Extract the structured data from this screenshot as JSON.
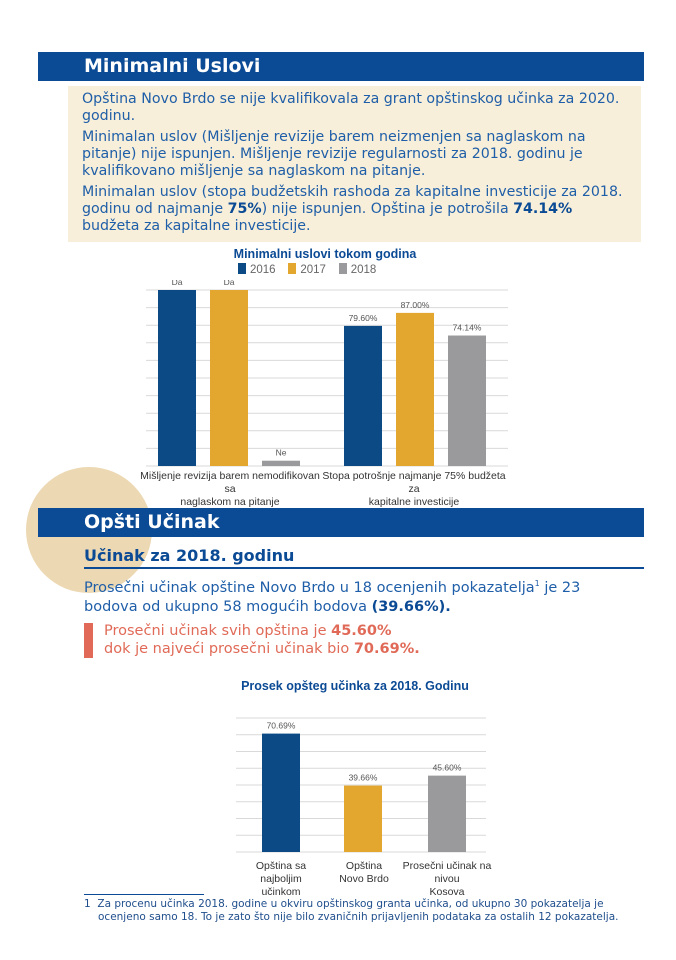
{
  "section1": {
    "title": "Minimalni Uslovi",
    "paragraphs": [
      [
        "Opština Novo Brdo se nije kvalifikovala za grant opštinskog učinka za 2020. godinu."
      ],
      [
        "Minimalan uslov (Mišljenje revizije barem neizmenjen sa naglaskom na pitanje) nije ispunjen. Mišljenje revizije regularnosti za 2018. godinu je kvalifikovano mišljenje sa naglaskom na pitanje."
      ],
      [
        "Minimalan uslov (stopa budžetskih rashoda za kapitalne investicije za 2018. godinu od najmanje ",
        "75%",
        ") nije ispunjen. Opština je potrošila ",
        "74.14%",
        " budžeta za kapitalne investicije."
      ]
    ]
  },
  "chart1": {
    "title": "Minimalni uslovi tokom godina",
    "legend": [
      "2016",
      "2017",
      "2018"
    ],
    "colors": [
      "#0b4a85",
      "#e3a72f",
      "#9a9a9c"
    ],
    "groups": [
      {
        "label_lines": [
          "Mišljenje revizija barem nemodifikovan sa",
          "naglaskom na pitanje"
        ],
        "bars": [
          {
            "value": 100,
            "label": "Da"
          },
          {
            "value": 100,
            "label": "Da"
          },
          {
            "value": 3,
            "label": "Ne"
          }
        ]
      },
      {
        "label_lines": [
          "Stopa potrošnje najmanje 75% budžeta za",
          "kapitalne investicije"
        ],
        "bars": [
          {
            "value": 79.6,
            "label": "79.60%"
          },
          {
            "value": 87.0,
            "label": "87.00%"
          },
          {
            "value": 74.14,
            "label": "74.14%"
          }
        ]
      }
    ]
  },
  "section2": {
    "title": "Opšti Učinak",
    "subtitle": "Učinak za 2018. godinu",
    "intro_a": "Prosečni učinak opštine Novo Brdo u 18 ocenjenih pokazatelja",
    "intro_sup": "1",
    "intro_b": " je 23",
    "intro_line2": "bodova od ukupno 58 mogućih bodova ",
    "intro_bold": "(39.66%).",
    "callout_line1": "Prosečni učinak svih opština je ",
    "callout_bold1": "45.60%",
    "callout_line2": "dok je najveći prosečni učinak bio ",
    "callout_bold2": "70.69%."
  },
  "chart2": {
    "title": "Prosek opšteg učinka za 2018. Godinu",
    "bars": [
      {
        "value": 70.69,
        "label": "70.69%",
        "cat_lines": [
          "Opština sa najboljim",
          "učinkom"
        ],
        "color": "#0b4a85"
      },
      {
        "value": 39.66,
        "label": "39.66%",
        "cat_lines": [
          "Opština",
          "Novo Brdo"
        ],
        "color": "#e3a72f"
      },
      {
        "value": 45.6,
        "label": "45.60%",
        "cat_lines": [
          "Prosečni učinak na nivou",
          "Kosova"
        ],
        "color": "#9a9a9c"
      }
    ]
  },
  "chart_data": [
    {
      "type": "bar",
      "title": "Minimalni uslovi tokom godina",
      "categories": [
        "Mišljenje revizija barem nemodifikovan sa naglaskom na pitanje",
        "Stopa potrošnje najmanje 75% budžeta za kapitalne investicije"
      ],
      "series": [
        {
          "name": "2016",
          "values": [
            "Da",
            79.6
          ]
        },
        {
          "name": "2017",
          "values": [
            "Da",
            87.0
          ]
        },
        {
          "name": "2018",
          "values": [
            "Ne",
            74.14
          ]
        }
      ],
      "grid": true
    },
    {
      "type": "bar",
      "title": "Prosek opšteg učinka za 2018. Godinu",
      "categories": [
        "Opština sa najboljim učinkom",
        "Opština Novo Brdo",
        "Prosečni učinak na nivou Kosova"
      ],
      "values": [
        70.69,
        39.66,
        45.6
      ],
      "grid": true
    }
  ],
  "footnote": {
    "num": "1",
    "line1": "Za procenu učinka 2018. godine u okviru opštinskog granta učinka, od ukupno 30 pokazatelja je",
    "line2": "ocenjeno samo 18. To je zato što nije bilo zvaničnih prijavljenih podataka za ostalih 12 pokazatelja."
  }
}
